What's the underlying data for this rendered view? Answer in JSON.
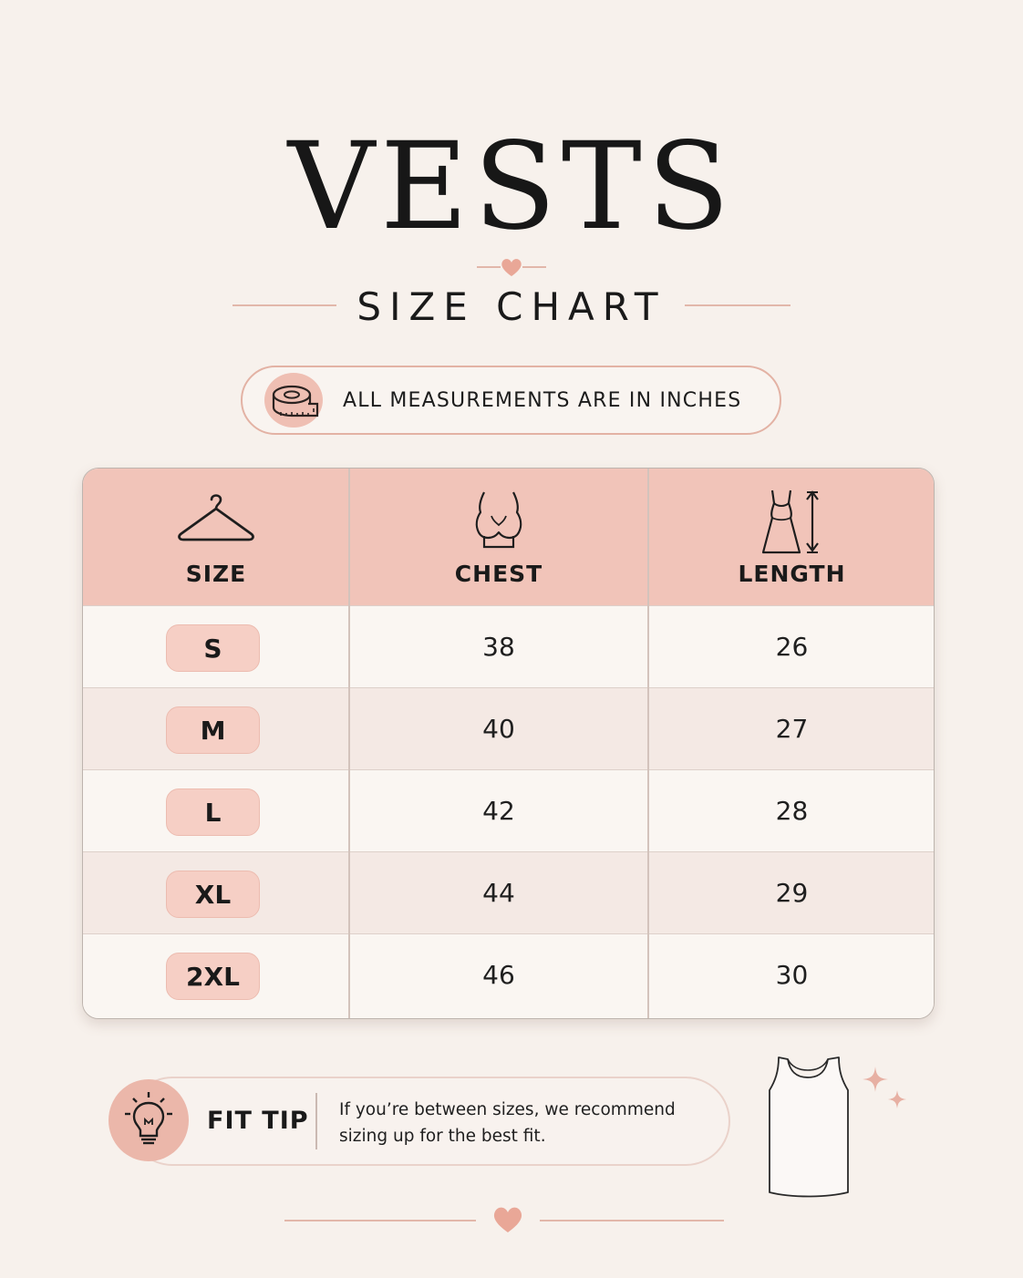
{
  "title": "VESTS",
  "subtitle": "SIZE CHART",
  "units_note": "ALL MEASUREMENTS ARE IN INCHES",
  "colors": {
    "accent_pink": "#f1c4b9",
    "badge_pink": "#f6cfc5",
    "line_pink": "#e2b7aa",
    "heart": "#e9a797"
  },
  "table": {
    "headers": [
      {
        "label": "SIZE",
        "icon": "hanger-icon"
      },
      {
        "label": "CHEST",
        "icon": "chest-icon"
      },
      {
        "label": "LENGTH",
        "icon": "dress-length-icon"
      }
    ],
    "rows": [
      {
        "size": "S",
        "chest": "38",
        "length": "26"
      },
      {
        "size": "M",
        "chest": "40",
        "length": "27"
      },
      {
        "size": "L",
        "chest": "42",
        "length": "28"
      },
      {
        "size": "XL",
        "chest": "44",
        "length": "29"
      },
      {
        "size": "2XL",
        "chest": "46",
        "length": "30"
      }
    ]
  },
  "fit_tip": {
    "label": "FIT TIP",
    "text": "If you’re between sizes, we recommend sizing up for the best fit.",
    "icon": "lightbulb-icon"
  },
  "decor_icons": [
    "heart-icon",
    "tape-measure-icon",
    "vest-icon",
    "sparkle-icon"
  ]
}
